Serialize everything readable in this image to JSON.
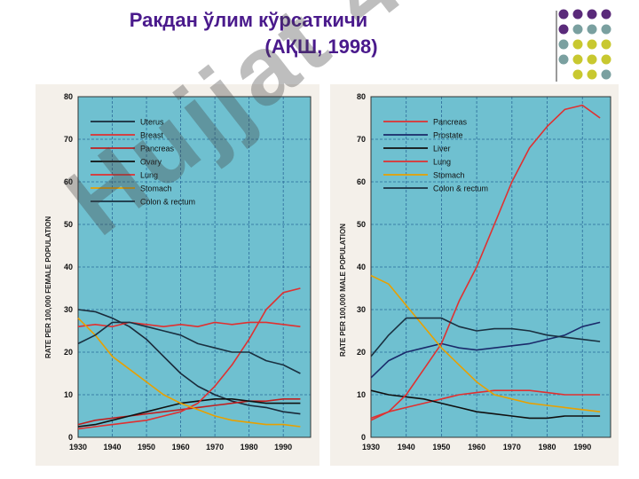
{
  "slide": {
    "title_line1": "Ракдан ўлим кўрсаткичи",
    "title_line2": "(АҚШ, 1998)",
    "watermark": "Hujjat 4",
    "colors": {
      "title": "#4a1a8c",
      "plot_bg": "#6fc0d0",
      "dot_purple": "#5a2a7a",
      "dot_teal": "#7aa0a0",
      "dot_yellow": "#c8c830"
    }
  },
  "chart_data": [
    {
      "type": "line",
      "ylabel": "RATE PER 100,000 FEMALE POPULATION",
      "ylim": [
        0,
        80
      ],
      "xlim": [
        1930,
        1998
      ],
      "yticks": [
        "0",
        "10",
        "20",
        "30",
        "40",
        "50",
        "60",
        "70",
        "80"
      ],
      "xticks": [
        "1930",
        "1940",
        "1950",
        "1960",
        "1970",
        "1980",
        "1990"
      ],
      "grid": true,
      "legend_position": "top-left",
      "series": [
        {
          "name": "Uterus",
          "color": "#1a2a3a",
          "x": [
            1930,
            1935,
            1940,
            1945,
            1950,
            1955,
            1960,
            1965,
            1970,
            1975,
            1980,
            1985,
            1990,
            1995
          ],
          "y": [
            30,
            29.5,
            28,
            26,
            23,
            19,
            15,
            12,
            10,
            8.5,
            7.5,
            7,
            6,
            5.5
          ]
        },
        {
          "name": "Breast",
          "color": "#e03030",
          "x": [
            1930,
            1935,
            1940,
            1945,
            1950,
            1955,
            1960,
            1965,
            1970,
            1975,
            1980,
            1985,
            1990,
            1995
          ],
          "y": [
            26,
            26.5,
            26,
            27,
            26.5,
            26,
            26.5,
            26,
            27,
            26.5,
            27,
            27,
            26.5,
            26
          ]
        },
        {
          "name": "Pancreas",
          "color": "#c02020",
          "x": [
            1930,
            1935,
            1940,
            1945,
            1950,
            1955,
            1960,
            1965,
            1970,
            1975,
            1980,
            1985,
            1990,
            1995
          ],
          "y": [
            3,
            4,
            4.5,
            5,
            5.5,
            6,
            6.5,
            7,
            7.5,
            8,
            8.5,
            8.5,
            9,
            9
          ]
        },
        {
          "name": "Ovary",
          "color": "#101010",
          "x": [
            1930,
            1935,
            1940,
            1945,
            1950,
            1955,
            1960,
            1965,
            1970,
            1975,
            1980,
            1985,
            1990,
            1995
          ],
          "y": [
            2.5,
            3,
            4,
            5,
            6,
            7,
            8,
            8.5,
            9,
            9,
            8.5,
            8,
            8,
            8
          ]
        },
        {
          "name": "Lung",
          "color": "#e03030",
          "x": [
            1930,
            1935,
            1940,
            1945,
            1950,
            1955,
            1960,
            1965,
            1970,
            1975,
            1980,
            1985,
            1990,
            1995
          ],
          "y": [
            2,
            2.5,
            3,
            3.5,
            4,
            5,
            6,
            8,
            12,
            17,
            23,
            30,
            34,
            35
          ]
        },
        {
          "name": "Stomach",
          "color": "#e8a000",
          "x": [
            1930,
            1935,
            1940,
            1945,
            1950,
            1955,
            1960,
            1965,
            1970,
            1975,
            1980,
            1985,
            1990,
            1995
          ],
          "y": [
            28,
            24,
            19,
            16,
            13,
            10,
            8,
            6.5,
            5,
            4,
            3.5,
            3,
            3,
            2.5
          ]
        },
        {
          "name": "Colon & rectum",
          "color": "#1a3040",
          "x": [
            1930,
            1935,
            1940,
            1945,
            1950,
            1955,
            1960,
            1965,
            1970,
            1975,
            1980,
            1985,
            1990,
            1995
          ],
          "y": [
            22,
            24,
            27,
            27,
            26,
            25,
            24,
            22,
            21,
            20,
            20,
            18,
            17,
            15
          ]
        }
      ]
    },
    {
      "type": "line",
      "ylabel": "RATE PER 100,000 MALE POPULATION",
      "ylim": [
        0,
        80
      ],
      "xlim": [
        1930,
        1998
      ],
      "yticks": [
        "0",
        "10",
        "20",
        "30",
        "40",
        "50",
        "60",
        "70",
        "80"
      ],
      "xticks": [
        "1930",
        "1940",
        "1950",
        "1960",
        "1970",
        "1980",
        "1990"
      ],
      "grid": true,
      "legend_position": "top-left",
      "series": [
        {
          "name": "Pancreas",
          "color": "#e03030",
          "x": [
            1930,
            1935,
            1940,
            1945,
            1950,
            1955,
            1960,
            1965,
            1970,
            1975,
            1980,
            1985,
            1990,
            1995
          ],
          "y": [
            4.5,
            6,
            7,
            8,
            9,
            10,
            10.5,
            11,
            11,
            11,
            10.5,
            10,
            10,
            10
          ]
        },
        {
          "name": "Prostate",
          "color": "#1a2a6a",
          "x": [
            1930,
            1935,
            1940,
            1945,
            1950,
            1955,
            1960,
            1965,
            1970,
            1975,
            1980,
            1985,
            1990,
            1995
          ],
          "y": [
            14,
            18,
            20,
            21,
            22,
            21,
            20.5,
            21,
            21.5,
            22,
            23,
            24,
            26,
            27
          ]
        },
        {
          "name": "Liver",
          "color": "#101010",
          "x": [
            1930,
            1935,
            1940,
            1945,
            1950,
            1955,
            1960,
            1965,
            1970,
            1975,
            1980,
            1985,
            1990,
            1995
          ],
          "y": [
            11,
            10,
            9.5,
            9,
            8,
            7,
            6,
            5.5,
            5,
            4.5,
            4.5,
            5,
            5,
            5
          ]
        },
        {
          "name": "Lung",
          "color": "#e03030",
          "x": [
            1930,
            1935,
            1940,
            1945,
            1950,
            1955,
            1960,
            1965,
            1970,
            1975,
            1980,
            1985,
            1990,
            1995
          ],
          "y": [
            4,
            6,
            10,
            16,
            22,
            32,
            40,
            50,
            60,
            68,
            73,
            77,
            78,
            75
          ]
        },
        {
          "name": "Stomach",
          "color": "#e8a000",
          "x": [
            1930,
            1935,
            1940,
            1945,
            1950,
            1955,
            1960,
            1965,
            1970,
            1975,
            1980,
            1985,
            1990,
            1995
          ],
          "y": [
            38,
            36,
            31,
            26,
            21,
            17,
            13,
            10,
            9,
            8,
            7.5,
            7,
            6.5,
            6
          ]
        },
        {
          "name": "Colon & rectum",
          "color": "#1a3040",
          "x": [
            1930,
            1935,
            1940,
            1945,
            1950,
            1955,
            1960,
            1965,
            1970,
            1975,
            1980,
            1985,
            1990,
            1995
          ],
          "y": [
            19,
            24,
            28,
            28,
            28,
            26,
            25,
            25.5,
            25.5,
            25,
            24,
            23.5,
            23,
            22.5
          ]
        }
      ]
    }
  ]
}
